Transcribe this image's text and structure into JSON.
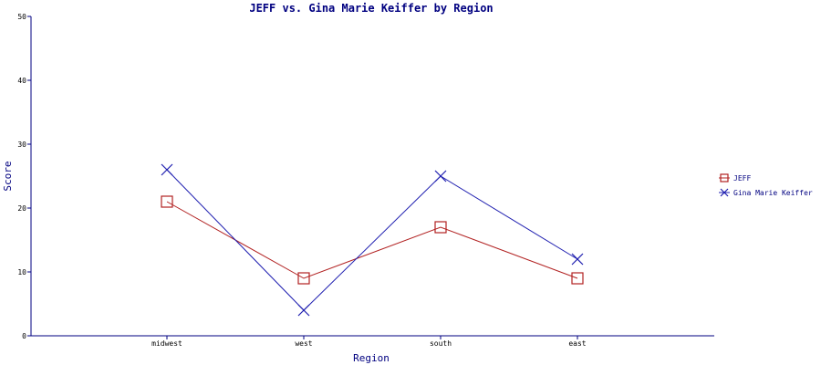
{
  "chart_data": {
    "type": "line",
    "title": "JEFF vs. Gina Marie Keiffer by Region",
    "xlabel": "Region",
    "ylabel": "Score",
    "categories": [
      "midwest",
      "west",
      "south",
      "east"
    ],
    "ylim": [
      0,
      50
    ],
    "yticks": [
      0,
      10,
      20,
      30,
      40,
      50
    ],
    "grid": false,
    "legend_position": "right",
    "series": [
      {
        "name": "JEFF",
        "values": [
          21,
          9,
          17,
          9
        ],
        "color": "#b22222",
        "marker": "square"
      },
      {
        "name": "Gina Marie Keiffer",
        "values": [
          26,
          4,
          25,
          12
        ],
        "color": "#1f1fb0",
        "marker": "x"
      }
    ]
  },
  "colors": {
    "axis": "#000080",
    "title": "#000080"
  }
}
